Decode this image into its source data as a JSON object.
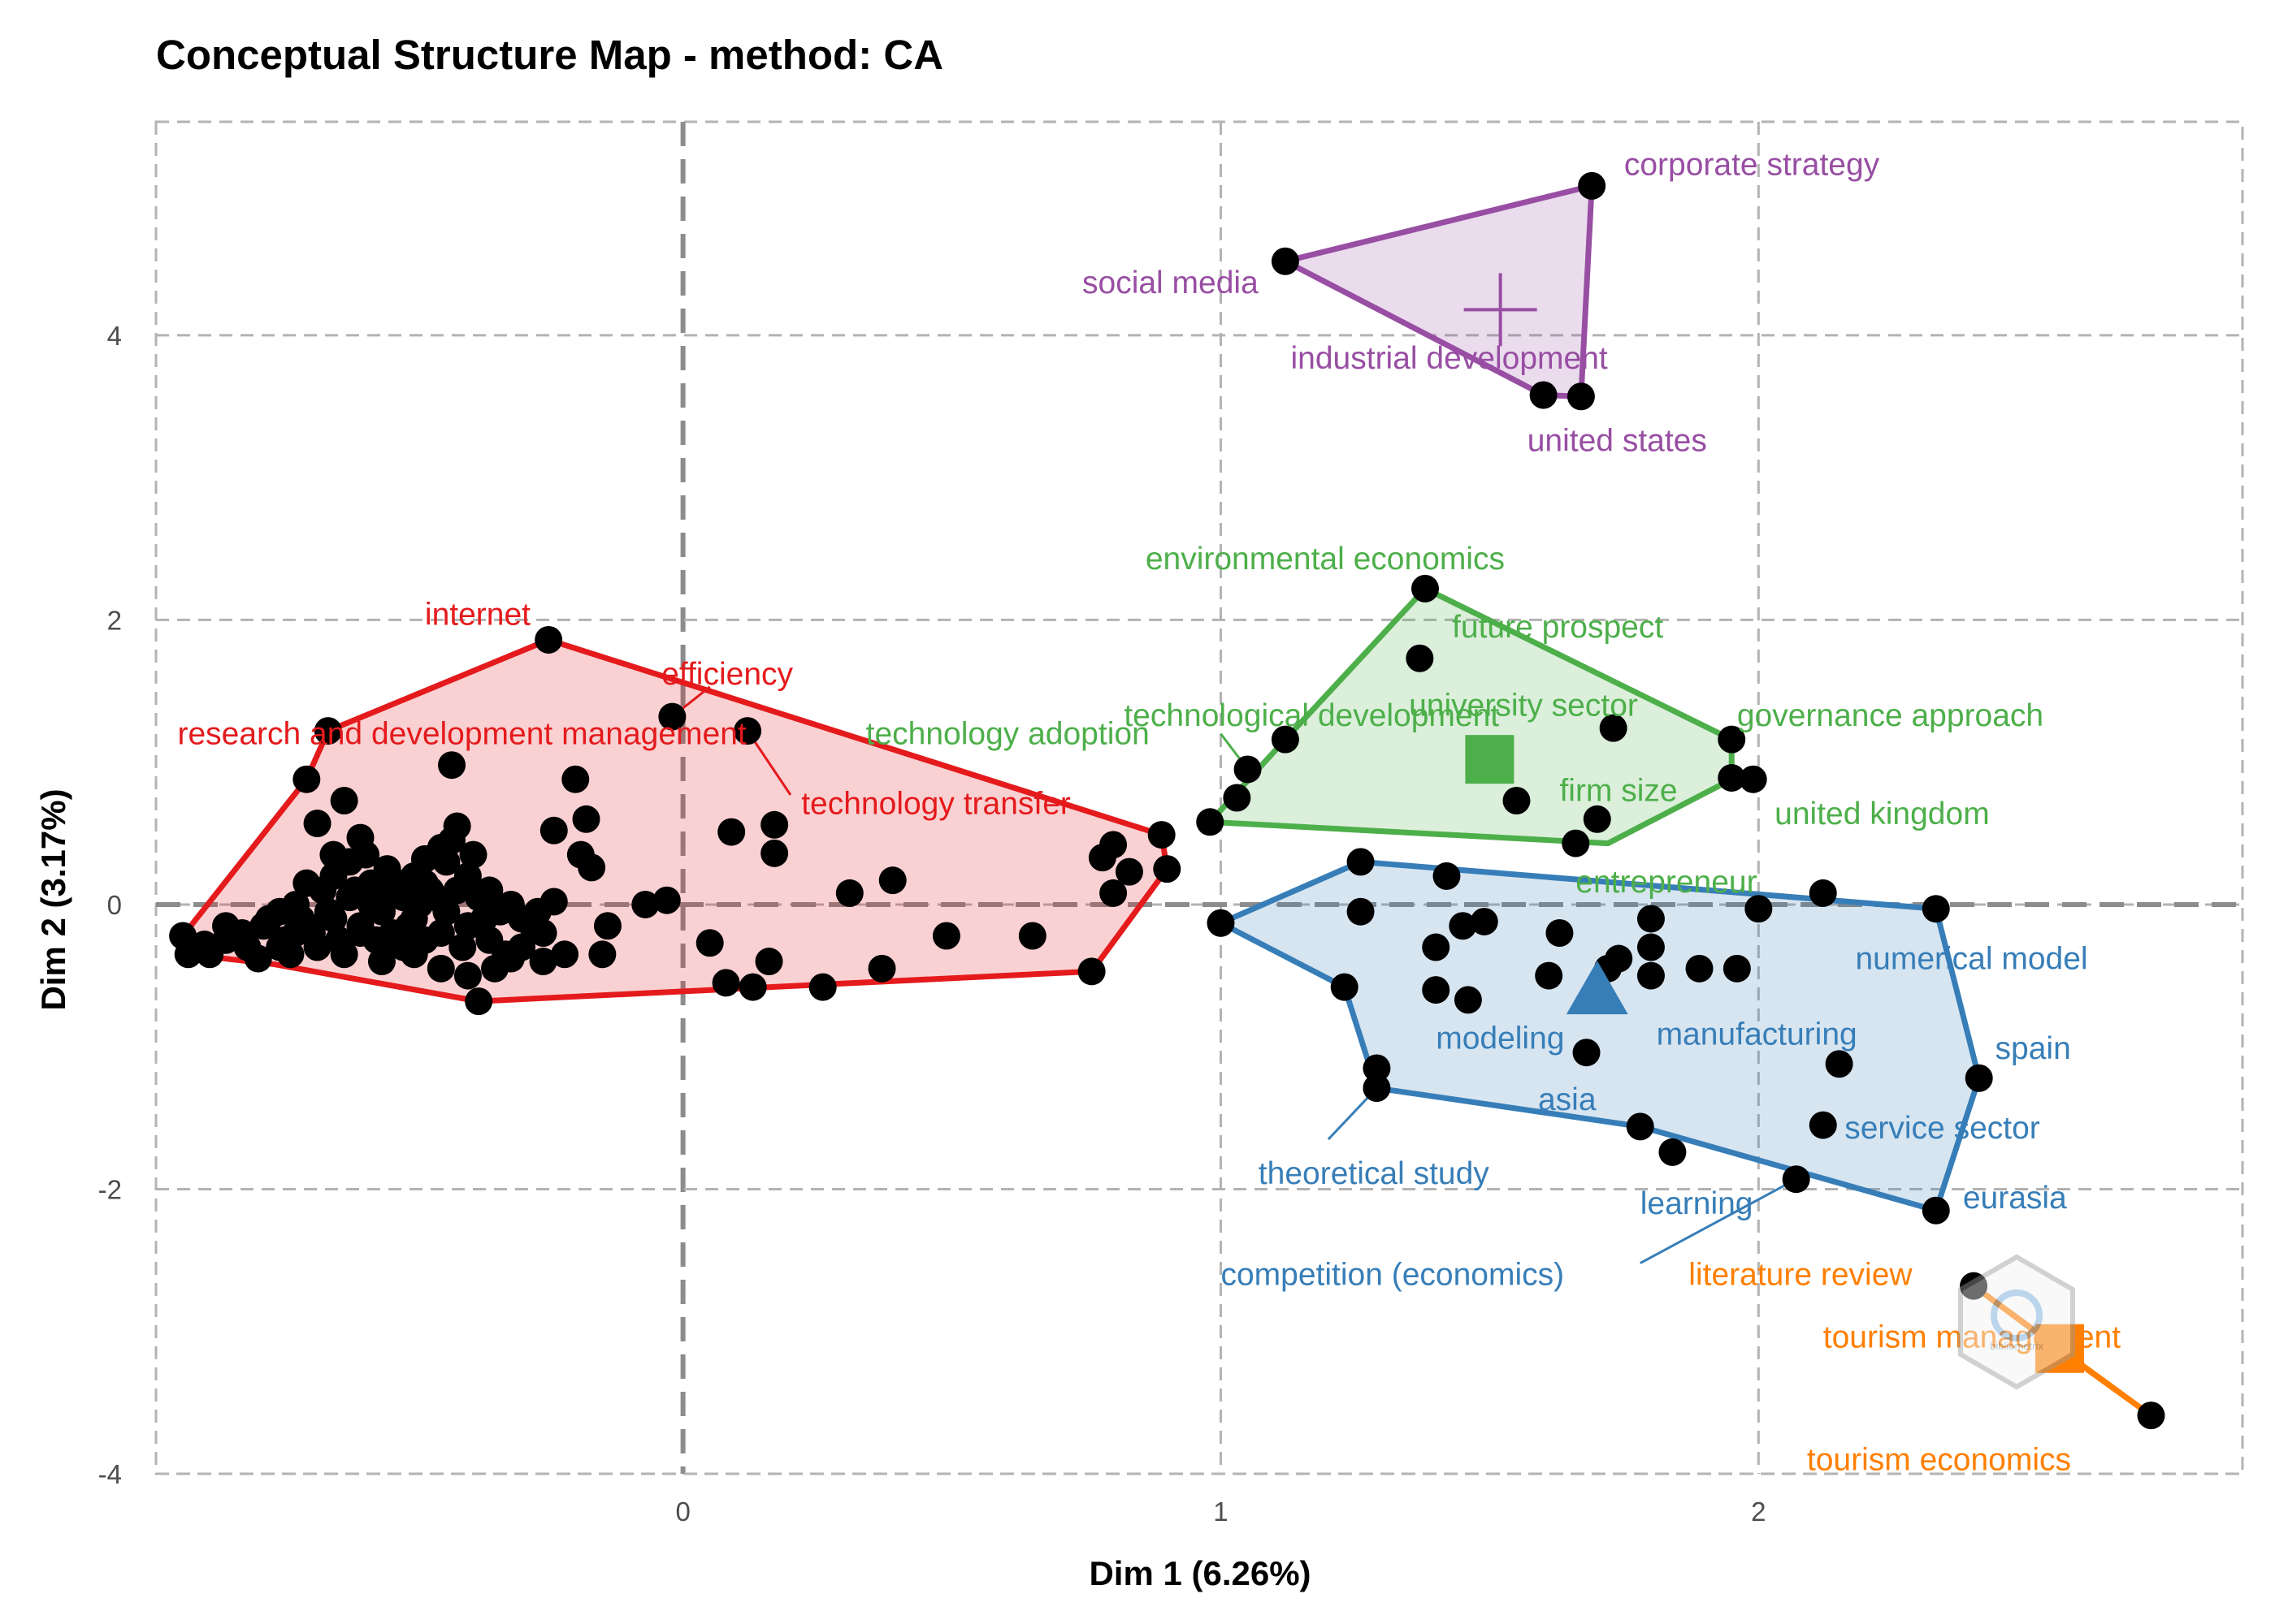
{
  "chart_data": {
    "type": "scatter",
    "title": "Conceptual Structure Map - method: CA",
    "xlabel": "Dim 1 (6.26%)",
    "ylabel": "Dim 2 (3.17%)",
    "xlim": [
      -0.98,
      2.9
    ],
    "ylim": [
      -4.0,
      5.5
    ],
    "x_ticks": [
      0,
      1,
      2
    ],
    "y_ticks": [
      4,
      2,
      0,
      -2,
      -4
    ],
    "x_tick_labels": [
      "0",
      "1",
      "2"
    ],
    "y_tick_labels": [
      "4",
      "2",
      "0",
      "-2",
      "-4"
    ],
    "grid": true,
    "legend": "none",
    "clusters": [
      {
        "color": "#e41a1c",
        "hull": [
          [
            -0.93,
            -0.22
          ],
          [
            -0.92,
            -0.35
          ],
          [
            -0.76,
            -0.42
          ],
          [
            -0.38,
            -0.68
          ],
          [
            0.76,
            -0.47
          ],
          [
            0.9,
            0.25
          ],
          [
            0.89,
            0.49
          ],
          [
            -0.25,
            1.86
          ],
          [
            -0.66,
            1.22
          ],
          [
            -0.7,
            0.88
          ]
        ],
        "points": [
          [
            -0.25,
            1.86
          ],
          [
            -0.66,
            1.22
          ],
          [
            -0.7,
            0.88
          ],
          [
            -0.63,
            0.73
          ],
          [
            -0.68,
            0.57
          ],
          [
            -0.6,
            0.47
          ],
          [
            -0.43,
            0.98
          ],
          [
            -0.02,
            1.32
          ],
          [
            0.12,
            1.22
          ],
          [
            -0.2,
            0.88
          ],
          [
            -0.18,
            0.6
          ],
          [
            -0.24,
            0.52
          ],
          [
            -0.19,
            0.35
          ],
          [
            -0.17,
            0.26
          ],
          [
            0.09,
            0.51
          ],
          [
            0.17,
            0.56
          ],
          [
            0.17,
            0.36
          ],
          [
            0.31,
            0.08
          ],
          [
            0.39,
            0.17
          ],
          [
            0.49,
            -0.22
          ],
          [
            0.65,
            -0.22
          ],
          [
            0.76,
            -0.47
          ],
          [
            0.8,
            0.42
          ],
          [
            0.83,
            0.23
          ],
          [
            0.78,
            0.33
          ],
          [
            0.8,
            0.08
          ],
          [
            0.89,
            0.49
          ],
          [
            0.9,
            0.25
          ],
          [
            -0.93,
            -0.22
          ],
          [
            -0.92,
            -0.35
          ],
          [
            -0.38,
            -0.68
          ],
          [
            -0.07,
            0.0
          ],
          [
            -0.03,
            0.03
          ],
          [
            -0.14,
            -0.15
          ],
          [
            -0.15,
            -0.35
          ],
          [
            -0.26,
            -0.4
          ],
          [
            -0.32,
            -0.38
          ],
          [
            0.05,
            -0.27
          ],
          [
            0.08,
            -0.55
          ],
          [
            0.13,
            -0.58
          ],
          [
            0.16,
            -0.4
          ],
          [
            0.26,
            -0.58
          ],
          [
            0.37,
            -0.45
          ],
          [
            -0.42,
            0.55
          ],
          [
            -0.45,
            0.4
          ],
          [
            -0.48,
            0.32
          ],
          [
            -0.5,
            0.2
          ],
          [
            -0.55,
            0.25
          ],
          [
            -0.58,
            0.15
          ],
          [
            -0.62,
            0.3
          ],
          [
            -0.65,
            0.2
          ],
          [
            -0.7,
            0.15
          ],
          [
            -0.72,
            0.0
          ],
          [
            -0.75,
            -0.05
          ],
          [
            -0.78,
            -0.15
          ],
          [
            -0.82,
            -0.2
          ],
          [
            -0.85,
            -0.25
          ],
          [
            -0.88,
            -0.35
          ],
          [
            -0.65,
            -0.1
          ],
          [
            -0.6,
            -0.2
          ],
          [
            -0.55,
            -0.3
          ],
          [
            -0.5,
            -0.35
          ],
          [
            -0.45,
            -0.45
          ],
          [
            -0.4,
            -0.5
          ],
          [
            -0.35,
            -0.45
          ],
          [
            -0.3,
            -0.3
          ],
          [
            -0.28,
            -0.15
          ],
          [
            -0.32,
            0.0
          ],
          [
            -0.36,
            0.1
          ],
          [
            -0.4,
            0.2
          ],
          [
            -0.44,
            0.3
          ],
          [
            -0.48,
            0.15
          ],
          [
            -0.52,
            0.05
          ],
          [
            -0.56,
            -0.05
          ],
          [
            -0.6,
            -0.15
          ],
          [
            -0.64,
            -0.25
          ],
          [
            -0.68,
            -0.3
          ],
          [
            -0.72,
            -0.2
          ],
          [
            -0.46,
            0.05
          ],
          [
            -0.42,
            0.1
          ],
          [
            -0.38,
            0.05
          ],
          [
            -0.34,
            -0.05
          ],
          [
            -0.3,
            -0.1
          ],
          [
            -0.26,
            -0.2
          ],
          [
            -0.22,
            -0.35
          ],
          [
            -0.24,
            0.02
          ],
          [
            -0.27,
            -0.05
          ],
          [
            -0.5,
            -0.1
          ],
          [
            -0.54,
            -0.2
          ],
          [
            -0.58,
            0.0
          ],
          [
            -0.62,
            0.05
          ],
          [
            -0.66,
            -0.05
          ],
          [
            -0.7,
            -0.15
          ],
          [
            -0.74,
            -0.25
          ],
          [
            -0.36,
            -0.25
          ],
          [
            -0.4,
            -0.15
          ],
          [
            -0.44,
            -0.05
          ],
          [
            -0.48,
            -0.25
          ],
          [
            -0.52,
            -0.3
          ],
          [
            -0.56,
            -0.4
          ],
          [
            -0.39,
            0.35
          ],
          [
            -0.43,
            0.45
          ],
          [
            -0.47,
            0.1
          ],
          [
            -0.51,
            -0.15
          ],
          [
            -0.55,
            0.1
          ],
          [
            -0.59,
            0.35
          ],
          [
            -0.63,
            -0.35
          ],
          [
            -0.67,
            0.1
          ],
          [
            -0.71,
            -0.1
          ],
          [
            -0.75,
            -0.3
          ],
          [
            -0.79,
            -0.38
          ],
          [
            -0.33,
            -0.35
          ],
          [
            -0.37,
            -0.1
          ],
          [
            -0.41,
            -0.3
          ],
          [
            -0.45,
            -0.2
          ],
          [
            -0.49,
            0.0
          ],
          [
            -0.53,
            0.15
          ],
          [
            -0.57,
            -0.25
          ],
          [
            -0.61,
            0.1
          ],
          [
            -0.65,
            0.35
          ],
          [
            -0.69,
            -0.2
          ],
          [
            -0.73,
            -0.35
          ],
          [
            -0.77,
            -0.1
          ],
          [
            -0.81,
            -0.3
          ],
          [
            -0.85,
            -0.15
          ],
          [
            -0.89,
            -0.28
          ]
        ]
      },
      {
        "color": "#4daf4a",
        "hull": [
          [
            0.98,
            0.58
          ],
          [
            1.72,
            0.43
          ],
          [
            1.95,
            0.88
          ],
          [
            1.95,
            1.16
          ],
          [
            1.38,
            2.22
          ],
          [
            1.12,
            1.16
          ]
        ],
        "points": [
          [
            1.38,
            2.22
          ],
          [
            1.37,
            1.73
          ],
          [
            1.12,
            1.16
          ],
          [
            1.05,
            0.95
          ],
          [
            1.03,
            0.75
          ],
          [
            0.98,
            0.58
          ],
          [
            1.55,
            0.73
          ],
          [
            1.73,
            1.24
          ],
          [
            1.7,
            0.6
          ],
          [
            1.66,
            0.43
          ],
          [
            1.95,
            1.16
          ],
          [
            1.95,
            0.89
          ],
          [
            1.99,
            0.88
          ]
        ],
        "centroid": [
          1.5,
          1.02
        ],
        "centroid_shape": "square"
      },
      {
        "color": "#377eb8",
        "hull": [
          [
            1.0,
            -0.13
          ],
          [
            1.26,
            0.3
          ],
          [
            2.33,
            -0.03
          ],
          [
            2.41,
            -1.22
          ],
          [
            2.33,
            -2.15
          ],
          [
            1.78,
            -1.56
          ],
          [
            1.29,
            -1.29
          ],
          [
            1.23,
            -0.58
          ]
        ],
        "points": [
          [
            1.0,
            -0.13
          ],
          [
            1.26,
            0.3
          ],
          [
            1.26,
            -0.05
          ],
          [
            1.42,
            0.2
          ],
          [
            1.23,
            -0.58
          ],
          [
            1.4,
            -0.3
          ],
          [
            1.4,
            -0.6
          ],
          [
            1.45,
            -0.15
          ],
          [
            1.49,
            -0.12
          ],
          [
            1.46,
            -0.67
          ],
          [
            1.61,
            -0.5
          ],
          [
            1.63,
            -0.2
          ],
          [
            1.72,
            -0.45
          ],
          [
            1.74,
            -0.38
          ],
          [
            1.8,
            -0.1
          ],
          [
            1.8,
            -0.3
          ],
          [
            1.8,
            -0.5
          ],
          [
            1.89,
            -0.45
          ],
          [
            1.96,
            -0.45
          ],
          [
            2.0,
            -0.03
          ],
          [
            2.12,
            0.08
          ],
          [
            2.33,
            -0.03
          ],
          [
            1.29,
            -1.15
          ],
          [
            1.29,
            -1.29
          ],
          [
            1.68,
            -1.04
          ],
          [
            1.78,
            -1.56
          ],
          [
            1.84,
            -1.74
          ],
          [
            2.07,
            -1.93
          ],
          [
            2.12,
            -1.55
          ],
          [
            2.15,
            -1.12
          ],
          [
            2.41,
            -1.22
          ],
          [
            2.33,
            -2.15
          ]
        ],
        "centroid": [
          1.7,
          -0.6
        ],
        "centroid_shape": "triangle"
      },
      {
        "color": "#984ea3",
        "hull": [
          [
            1.12,
            4.52
          ],
          [
            1.69,
            5.05
          ],
          [
            1.67,
            3.57
          ],
          [
            1.6,
            3.58
          ]
        ],
        "points": [
          [
            1.12,
            4.52
          ],
          [
            1.69,
            5.05
          ],
          [
            1.6,
            3.58
          ],
          [
            1.67,
            3.57
          ]
        ],
        "centroid": [
          1.52,
          4.18
        ],
        "centroid_shape": "cross"
      },
      {
        "color": "#ff7f00",
        "hull": [
          [
            2.4,
            -2.68
          ],
          [
            2.55,
            -3.1
          ],
          [
            2.73,
            -3.59
          ]
        ],
        "points": [
          [
            2.4,
            -2.68
          ],
          [
            2.55,
            -3.1
          ],
          [
            2.73,
            -3.59
          ]
        ],
        "centroid": [
          2.56,
          -3.12
        ],
        "centroid_shape": "square"
      }
    ],
    "labels": [
      {
        "text": "corporate strategy",
        "color": "#984ea3",
        "x": 1.75,
        "y": 5.2,
        "anchor": "start"
      },
      {
        "text": "social media",
        "color": "#984ea3",
        "x": 1.07,
        "y": 4.37,
        "anchor": "end"
      },
      {
        "text": "industrial development",
        "color": "#984ea3",
        "x": 1.13,
        "y": 3.84,
        "anchor": "start"
      },
      {
        "text": "united states",
        "color": "#984ea3",
        "x": 1.57,
        "y": 3.26,
        "anchor": "start"
      },
      {
        "text": "environmental economics",
        "color": "#4daf4a",
        "x": 0.86,
        "y": 2.43,
        "anchor": "start"
      },
      {
        "text": "future prospect",
        "color": "#4daf4a",
        "x": 1.43,
        "y": 1.95,
        "anchor": "start"
      },
      {
        "text": "university sector",
        "color": "#4daf4a",
        "x": 1.35,
        "y": 1.4,
        "anchor": "start"
      },
      {
        "text": "technological development",
        "color": "#4daf4a",
        "x": 0.82,
        "y": 1.33,
        "anchor": "start"
      },
      {
        "text": "governance approach",
        "color": "#4daf4a",
        "x": 1.96,
        "y": 1.33,
        "anchor": "start"
      },
      {
        "text": "technology adoption",
        "color": "#4daf4a",
        "x": 0.34,
        "y": 1.2,
        "anchor": "start"
      },
      {
        "text": "firm size",
        "color": "#4daf4a",
        "x": 1.63,
        "y": 0.8,
        "anchor": "start"
      },
      {
        "text": "united kingdom",
        "color": "#4daf4a",
        "x": 2.03,
        "y": 0.64,
        "anchor": "start"
      },
      {
        "text": "entrepreneur",
        "color": "#4daf4a",
        "x": 1.66,
        "y": 0.16,
        "anchor": "start"
      },
      {
        "text": "internet",
        "color": "#e41a1c",
        "x": -0.48,
        "y": 2.04,
        "anchor": "start"
      },
      {
        "text": "efficiency",
        "color": "#e41a1c",
        "x": -0.04,
        "y": 1.62,
        "anchor": "start"
      },
      {
        "text": "research and development management",
        "color": "#e41a1c",
        "x": -0.94,
        "y": 1.2,
        "anchor": "start"
      },
      {
        "text": "technology transfer",
        "color": "#e41a1c",
        "x": 0.22,
        "y": 0.71,
        "anchor": "start"
      },
      {
        "text": "numerical model",
        "color": "#377eb8",
        "x": 2.18,
        "y": -0.38,
        "anchor": "start"
      },
      {
        "text": "manufacturing",
        "color": "#377eb8",
        "x": 1.81,
        "y": -0.91,
        "anchor": "start"
      },
      {
        "text": "modeling",
        "color": "#377eb8",
        "x": 1.4,
        "y": -0.94,
        "anchor": "start"
      },
      {
        "text": "spain",
        "color": "#377eb8",
        "x": 2.44,
        "y": -1.01,
        "anchor": "start"
      },
      {
        "text": "asia",
        "color": "#377eb8",
        "x": 1.59,
        "y": -1.37,
        "anchor": "start"
      },
      {
        "text": "service sector",
        "color": "#377eb8",
        "x": 2.16,
        "y": -1.57,
        "anchor": "start"
      },
      {
        "text": "theoretical study",
        "color": "#377eb8",
        "x": 1.07,
        "y": -1.89,
        "anchor": "start"
      },
      {
        "text": "eurasia",
        "color": "#377eb8",
        "x": 2.38,
        "y": -2.06,
        "anchor": "start"
      },
      {
        "text": "learning",
        "color": "#377eb8",
        "x": 1.78,
        "y": -2.1,
        "anchor": "start"
      },
      {
        "text": "competition (economics)",
        "color": "#377eb8",
        "x": 1.0,
        "y": -2.6,
        "anchor": "start"
      },
      {
        "text": "literature review",
        "color": "#ff7f00",
        "x": 1.87,
        "y": -2.6,
        "anchor": "start"
      },
      {
        "text": "tourism management",
        "color": "#ff7f00",
        "x": 2.12,
        "y": -3.04,
        "anchor": "start"
      },
      {
        "text": "tourism economics",
        "color": "#ff7f00",
        "x": 2.09,
        "y": -3.9,
        "anchor": "start"
      }
    ],
    "leader_lines": [
      {
        "color": "#e41a1c",
        "from": [
          -0.02,
          1.32
        ],
        "to": [
          0.05,
          1.53
        ]
      },
      {
        "color": "#e41a1c",
        "from": [
          0.12,
          1.22
        ],
        "to": [
          0.2,
          0.77
        ]
      },
      {
        "color": "#4daf4a",
        "from": [
          1.05,
          0.95
        ],
        "to": [
          1.0,
          1.2
        ]
      },
      {
        "color": "#377eb8",
        "from": [
          1.29,
          -1.29
        ],
        "to": [
          1.2,
          -1.65
        ]
      },
      {
        "color": "#377eb8",
        "from": [
          2.07,
          -1.93
        ],
        "to": [
          1.78,
          -2.52
        ]
      }
    ]
  }
}
